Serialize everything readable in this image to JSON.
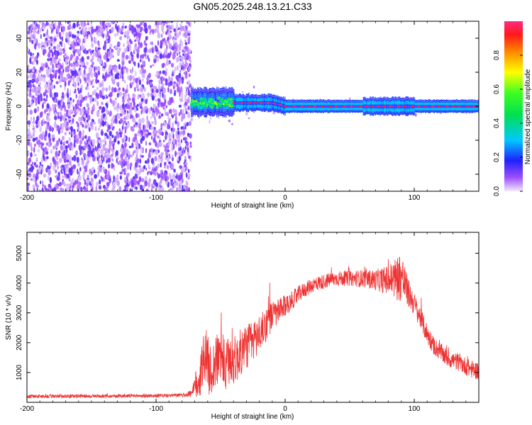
{
  "figure": {
    "title": "GN05.2025.248.13.21.C33"
  },
  "chart_data": [
    {
      "type": "heatmap",
      "name": "spectrogram",
      "xlabel": "Height of straight line (km)",
      "ylabel": "Frequency (Hz)",
      "xlim": [
        -200,
        150
      ],
      "ylim": [
        -50,
        50
      ],
      "xticks": [
        -200,
        -100,
        0,
        100
      ],
      "yticks": [
        -40,
        -20,
        0,
        20,
        40
      ],
      "grid": false,
      "colorbar": {
        "label": "Normalized spectral amplitude",
        "range": [
          0,
          1
        ],
        "ticks": [
          0.0,
          0.2,
          0.4,
          0.6,
          0.8
        ]
      },
      "regions": [
        {
          "x_range": [
            -200,
            -73
          ],
          "description": "broadband noise, low amplitude (0.1-0.3)",
          "freq_range": [
            -50,
            50
          ]
        },
        {
          "x_range": [
            -73,
            -40
          ],
          "description": "signal onset, spread",
          "freq_range": [
            -7,
            8
          ],
          "peak_amplitude": 0.6
        },
        {
          "x_range": [
            -40,
            0
          ],
          "description": "narrowing carrier near 2 Hz drifting to 0 Hz",
          "freq_range": [
            -2,
            4
          ],
          "peak_amplitude": 0.95
        },
        {
          "x_range": [
            0,
            150
          ],
          "description": "stable carrier at 0 Hz",
          "freq_range": [
            -2,
            2
          ],
          "peak_amplitude": 1.0
        }
      ]
    },
    {
      "type": "line",
      "name": "snr",
      "xlabel": "Height of straight line (km)",
      "ylabel": "SNR (10 * v/v)",
      "xlim": [
        -200,
        150
      ],
      "ylim": [
        0,
        5700
      ],
      "xticks": [
        -200,
        -100,
        0,
        100
      ],
      "yticks": [
        1000,
        2000,
        3000,
        4000,
        5000
      ],
      "grid": false,
      "series": [
        {
          "name": "SNR",
          "color": "#ee3333",
          "x": [
            -200,
            -150,
            -100,
            -80,
            -72,
            -66,
            -62,
            -58,
            -54,
            -50,
            -46,
            -42,
            -38,
            -34,
            -30,
            -26,
            -22,
            -18,
            -14,
            -10,
            -6,
            -2,
            2,
            6,
            10,
            14,
            18,
            22,
            26,
            30,
            34,
            40,
            50,
            60,
            70,
            80,
            85,
            90,
            95,
            100,
            105,
            110,
            115,
            120,
            125,
            130,
            135,
            140,
            145,
            150
          ],
          "values": [
            200,
            210,
            220,
            240,
            300,
            900,
            1700,
            1000,
            1300,
            1600,
            1100,
            1500,
            1400,
            1700,
            1900,
            2000,
            2200,
            2400,
            2700,
            2900,
            3000,
            3150,
            3300,
            3450,
            3600,
            3750,
            3850,
            3950,
            4000,
            4050,
            4100,
            4150,
            4150,
            4150,
            4100,
            4100,
            4150,
            4250,
            3700,
            3300,
            2800,
            2300,
            1900,
            1700,
            1500,
            1400,
            1350,
            1200,
            1100,
            1050
          ],
          "noise_amplitude": [
            60,
            60,
            60,
            60,
            150,
            900,
            900,
            900,
            900,
            900,
            900,
            900,
            800,
            800,
            800,
            700,
            700,
            600,
            600,
            500,
            450,
            400,
            350,
            300,
            300,
            250,
            250,
            250,
            250,
            250,
            250,
            250,
            250,
            300,
            350,
            500,
            700,
            900,
            500,
            400,
            350,
            350,
            300,
            300,
            300,
            300,
            300,
            300,
            300,
            300
          ]
        }
      ]
    }
  ]
}
